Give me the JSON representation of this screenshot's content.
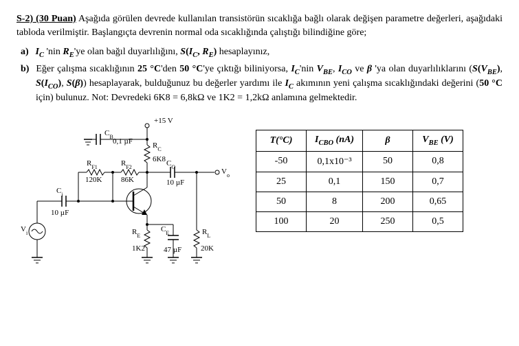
{
  "header": {
    "qnum": "S-2) (30 Puan)",
    "text_after": "Aşağıda görülen devrede kullanılan transistörün sıcaklığa bağlı olarak değişen parametre değerleri, aşağıdaki tabloda verilmiştir. Başlangıçta devrenin normal oda sıcaklığında çalıştığı bilindiğine göre;"
  },
  "parts": {
    "a": {
      "label": "a)"
    },
    "b": {
      "label": "b)"
    }
  },
  "circuit": {
    "vcc": "+15 V",
    "cb_label": "C",
    "cb_sub": "B",
    "cb_val": "0,1 µF",
    "rc_label": "R",
    "rc_sub": "C",
    "rc_val": "6K8",
    "rf1_label": "R",
    "rf1_sub": "F1",
    "rf1_val": "120K",
    "rf2_label": "R",
    "rf2_sub": "F2",
    "rf2_val": "86K",
    "ci_label": "C",
    "ci_sub": "i",
    "ci_val": "10 µF",
    "co_label": "C",
    "co_sub": "O",
    "co_val": "10 µF",
    "re_label": "R",
    "re_sub": "E",
    "re_val": "1K2",
    "ce_label": "C",
    "ce_sub": "E",
    "ce_val": "47 µF",
    "rl_label": "R",
    "rl_sub": "L",
    "rl_val": "20K",
    "vi_label": "V",
    "vi_sub": "i",
    "vo_label": "V",
    "vo_sub": "o"
  },
  "table": {
    "cols": [
      {
        "h_html": "<i>T(°C)</i>"
      },
      {
        "h_html": "<i>I<sub>CBO</sub> (nA)</i>"
      },
      {
        "h_html": "<i>β</i>"
      },
      {
        "h_html": "<i>V<sub>BE</sub> (V)</i>"
      }
    ],
    "rows": [
      [
        "-50",
        "0,1x10⁻³",
        "50",
        "0,8"
      ],
      [
        "25",
        "0,1",
        "150",
        "0,7"
      ],
      [
        "50",
        "8",
        "200",
        "0,65"
      ],
      [
        "100",
        "20",
        "250",
        "0,5"
      ]
    ]
  }
}
